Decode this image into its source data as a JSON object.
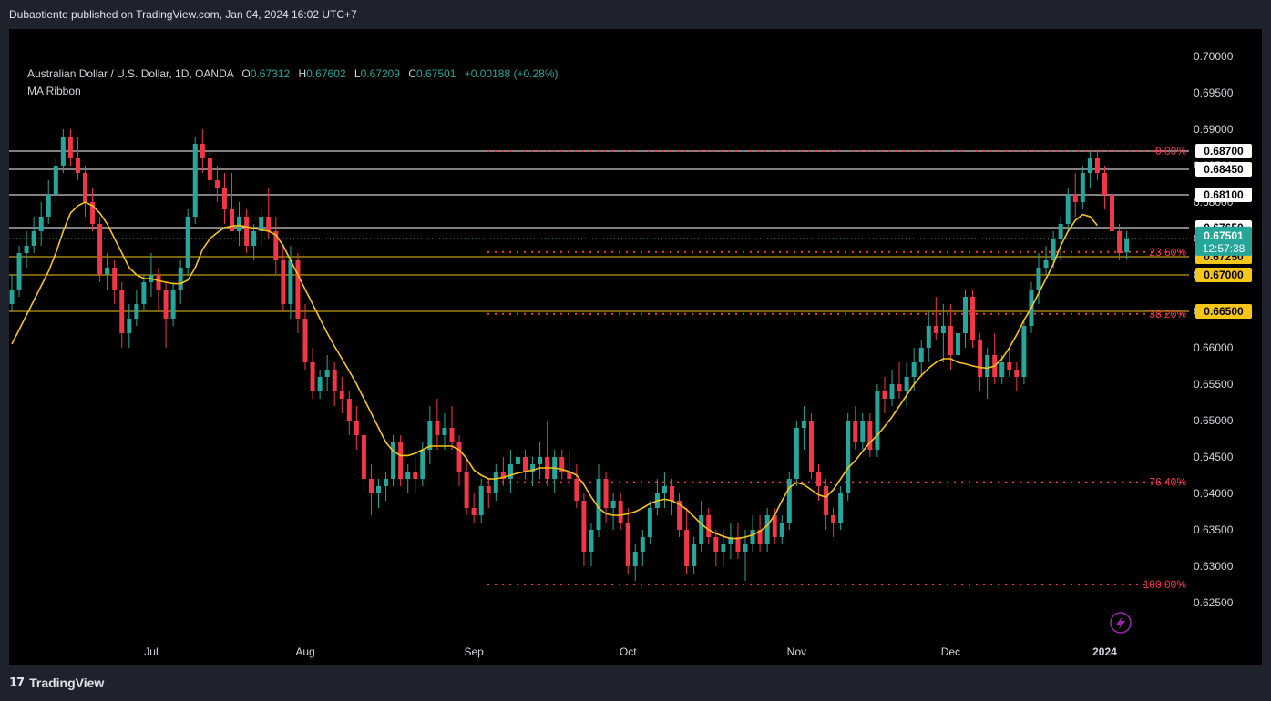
{
  "header": {
    "published": "Dubaotiente published on TradingView.com, Jan 04, 2024 16:02 UTC+7"
  },
  "legend": {
    "symbol": "Australian Dollar / U.S. Dollar, 1D, OANDA",
    "o_label": "O",
    "o_value": "0.67312",
    "h_label": "H",
    "h_value": "0.67602",
    "l_label": "L",
    "l_value": "0.67209",
    "c_label": "C",
    "c_value": "0.67501",
    "change": "+0.00188 (+0.28%)",
    "indicator": "MA Ribbon"
  },
  "footer": {
    "brand": "TradingView"
  },
  "colors": {
    "up": "#26a69a",
    "down": "#f23645",
    "ma": "#f5c518",
    "fib": "#f23645",
    "grid_text": "#d1d4dc",
    "background": "#000000"
  },
  "icons": {
    "lightning": "lightning-icon",
    "logo": "tradingview-logo-icon"
  },
  "chart_data": {
    "type": "candlestick",
    "symbol": "AUDUSD",
    "timeframe": "1D",
    "ylim": [
      0.6225,
      0.702
    ],
    "y_ticks": [
      "0.70000",
      "0.69500",
      "0.69000",
      "0.68500",
      "0.68000",
      "0.67500",
      "0.67000",
      "0.66500",
      "0.66000",
      "0.65500",
      "0.65000",
      "0.64500",
      "0.64000",
      "0.63500",
      "0.63000",
      "0.62500"
    ],
    "x_labels": [
      {
        "label": "Jul",
        "index": 19
      },
      {
        "label": "Aug",
        "index": 40
      },
      {
        "label": "Sep",
        "index": 63
      },
      {
        "label": "Oct",
        "index": 84
      },
      {
        "label": "Nov",
        "index": 107
      },
      {
        "label": "Dec",
        "index": 128
      },
      {
        "label": "2024",
        "index": 149
      }
    ],
    "candles": [
      [
        0.666,
        0.67,
        0.665,
        0.668
      ],
      [
        0.668,
        0.674,
        0.667,
        0.673
      ],
      [
        0.673,
        0.676,
        0.671,
        0.674
      ],
      [
        0.674,
        0.678,
        0.673,
        0.676
      ],
      [
        0.676,
        0.68,
        0.674,
        0.678
      ],
      [
        0.678,
        0.683,
        0.677,
        0.681
      ],
      [
        0.681,
        0.686,
        0.68,
        0.685
      ],
      [
        0.685,
        0.69,
        0.684,
        0.689
      ],
      [
        0.689,
        0.69,
        0.685,
        0.686
      ],
      [
        0.686,
        0.689,
        0.683,
        0.684
      ],
      [
        0.684,
        0.685,
        0.678,
        0.68
      ],
      [
        0.68,
        0.682,
        0.676,
        0.677
      ],
      [
        0.677,
        0.678,
        0.669,
        0.67
      ],
      [
        0.67,
        0.673,
        0.668,
        0.671
      ],
      [
        0.671,
        0.672,
        0.666,
        0.668
      ],
      [
        0.668,
        0.669,
        0.66,
        0.662
      ],
      [
        0.662,
        0.666,
        0.66,
        0.664
      ],
      [
        0.664,
        0.668,
        0.663,
        0.666
      ],
      [
        0.666,
        0.67,
        0.665,
        0.669
      ],
      [
        0.669,
        0.673,
        0.667,
        0.67
      ],
      [
        0.67,
        0.671,
        0.665,
        0.668
      ],
      [
        0.668,
        0.669,
        0.66,
        0.664
      ],
      [
        0.664,
        0.669,
        0.663,
        0.668
      ],
      [
        0.668,
        0.672,
        0.666,
        0.671
      ],
      [
        0.671,
        0.679,
        0.67,
        0.678
      ],
      [
        0.678,
        0.689,
        0.677,
        0.688
      ],
      [
        0.688,
        0.69,
        0.684,
        0.686
      ],
      [
        0.686,
        0.687,
        0.681,
        0.683
      ],
      [
        0.683,
        0.685,
        0.68,
        0.682
      ],
      [
        0.682,
        0.684,
        0.677,
        0.679
      ],
      [
        0.679,
        0.684,
        0.676,
        0.676
      ],
      [
        0.676,
        0.68,
        0.674,
        0.678
      ],
      [
        0.678,
        0.679,
        0.673,
        0.674
      ],
      [
        0.674,
        0.677,
        0.672,
        0.676
      ],
      [
        0.676,
        0.679,
        0.674,
        0.678
      ],
      [
        0.678,
        0.682,
        0.675,
        0.676
      ],
      [
        0.676,
        0.678,
        0.67,
        0.672
      ],
      [
        0.672,
        0.674,
        0.665,
        0.666
      ],
      [
        0.666,
        0.674,
        0.664,
        0.672
      ],
      [
        0.672,
        0.673,
        0.662,
        0.664
      ],
      [
        0.664,
        0.666,
        0.657,
        0.658
      ],
      [
        0.658,
        0.66,
        0.653,
        0.654
      ],
      [
        0.654,
        0.657,
        0.653,
        0.656
      ],
      [
        0.656,
        0.659,
        0.654,
        0.657
      ],
      [
        0.657,
        0.658,
        0.652,
        0.654
      ],
      [
        0.654,
        0.656,
        0.651,
        0.653
      ],
      [
        0.653,
        0.654,
        0.648,
        0.65
      ],
      [
        0.65,
        0.652,
        0.646,
        0.648
      ],
      [
        0.648,
        0.649,
        0.64,
        0.642
      ],
      [
        0.642,
        0.644,
        0.637,
        0.64
      ],
      [
        0.64,
        0.642,
        0.638,
        0.641
      ],
      [
        0.641,
        0.643,
        0.639,
        0.642
      ],
      [
        0.642,
        0.648,
        0.641,
        0.647
      ],
      [
        0.647,
        0.648,
        0.641,
        0.642
      ],
      [
        0.642,
        0.644,
        0.64,
        0.643
      ],
      [
        0.643,
        0.645,
        0.64,
        0.642
      ],
      [
        0.642,
        0.647,
        0.641,
        0.646
      ],
      [
        0.646,
        0.652,
        0.644,
        0.65
      ],
      [
        0.65,
        0.653,
        0.646,
        0.648
      ],
      [
        0.648,
        0.651,
        0.646,
        0.649
      ],
      [
        0.649,
        0.652,
        0.646,
        0.647
      ],
      [
        0.647,
        0.648,
        0.641,
        0.643
      ],
      [
        0.643,
        0.645,
        0.637,
        0.638
      ],
      [
        0.638,
        0.64,
        0.636,
        0.637
      ],
      [
        0.637,
        0.642,
        0.636,
        0.641
      ],
      [
        0.641,
        0.642,
        0.638,
        0.64
      ],
      [
        0.64,
        0.644,
        0.639,
        0.643
      ],
      [
        0.643,
        0.645,
        0.641,
        0.642
      ],
      [
        0.642,
        0.646,
        0.64,
        0.644
      ],
      [
        0.644,
        0.646,
        0.642,
        0.645
      ],
      [
        0.645,
        0.646,
        0.642,
        0.643
      ],
      [
        0.643,
        0.645,
        0.641,
        0.644
      ],
      [
        0.644,
        0.647,
        0.642,
        0.645
      ],
      [
        0.645,
        0.65,
        0.641,
        0.642
      ],
      [
        0.642,
        0.646,
        0.64,
        0.645
      ],
      [
        0.645,
        0.646,
        0.642,
        0.643
      ],
      [
        0.643,
        0.646,
        0.641,
        0.642
      ],
      [
        0.642,
        0.644,
        0.638,
        0.639
      ],
      [
        0.639,
        0.64,
        0.63,
        0.632
      ],
      [
        0.632,
        0.636,
        0.63,
        0.635
      ],
      [
        0.635,
        0.644,
        0.634,
        0.642
      ],
      [
        0.642,
        0.643,
        0.636,
        0.638
      ],
      [
        0.638,
        0.64,
        0.635,
        0.639
      ],
      [
        0.639,
        0.64,
        0.635,
        0.636
      ],
      [
        0.636,
        0.638,
        0.629,
        0.63
      ],
      [
        0.63,
        0.633,
        0.628,
        0.632
      ],
      [
        0.632,
        0.635,
        0.63,
        0.634
      ],
      [
        0.634,
        0.639,
        0.633,
        0.638
      ],
      [
        0.638,
        0.642,
        0.637,
        0.64
      ],
      [
        0.64,
        0.643,
        0.638,
        0.641
      ],
      [
        0.641,
        0.642,
        0.637,
        0.639
      ],
      [
        0.639,
        0.64,
        0.634,
        0.635
      ],
      [
        0.635,
        0.638,
        0.629,
        0.63
      ],
      [
        0.63,
        0.634,
        0.629,
        0.633
      ],
      [
        0.633,
        0.639,
        0.632,
        0.637
      ],
      [
        0.637,
        0.638,
        0.633,
        0.634
      ],
      [
        0.634,
        0.635,
        0.63,
        0.632
      ],
      [
        0.632,
        0.635,
        0.63,
        0.633
      ],
      [
        0.633,
        0.636,
        0.631,
        0.634
      ],
      [
        0.634,
        0.636,
        0.631,
        0.632
      ],
      [
        0.632,
        0.635,
        0.628,
        0.633
      ],
      [
        0.633,
        0.637,
        0.632,
        0.635
      ],
      [
        0.635,
        0.637,
        0.632,
        0.633
      ],
      [
        0.633,
        0.638,
        0.632,
        0.637
      ],
      [
        0.637,
        0.638,
        0.633,
        0.634
      ],
      [
        0.634,
        0.637,
        0.633,
        0.636
      ],
      [
        0.636,
        0.643,
        0.635,
        0.642
      ],
      [
        0.642,
        0.65,
        0.641,
        0.649
      ],
      [
        0.649,
        0.652,
        0.646,
        0.65
      ],
      [
        0.65,
        0.651,
        0.642,
        0.643
      ],
      [
        0.643,
        0.644,
        0.639,
        0.641
      ],
      [
        0.641,
        0.642,
        0.635,
        0.637
      ],
      [
        0.637,
        0.638,
        0.634,
        0.636
      ],
      [
        0.636,
        0.641,
        0.635,
        0.64
      ],
      [
        0.64,
        0.651,
        0.639,
        0.65
      ],
      [
        0.65,
        0.652,
        0.646,
        0.647
      ],
      [
        0.647,
        0.651,
        0.646,
        0.65
      ],
      [
        0.65,
        0.651,
        0.645,
        0.646
      ],
      [
        0.646,
        0.655,
        0.645,
        0.654
      ],
      [
        0.654,
        0.656,
        0.651,
        0.653
      ],
      [
        0.653,
        0.657,
        0.652,
        0.655
      ],
      [
        0.655,
        0.658,
        0.653,
        0.654
      ],
      [
        0.654,
        0.658,
        0.652,
        0.656
      ],
      [
        0.656,
        0.66,
        0.654,
        0.658
      ],
      [
        0.658,
        0.661,
        0.656,
        0.66
      ],
      [
        0.66,
        0.665,
        0.658,
        0.663
      ],
      [
        0.663,
        0.667,
        0.661,
        0.662
      ],
      [
        0.662,
        0.666,
        0.658,
        0.663
      ],
      [
        0.663,
        0.666,
        0.657,
        0.659
      ],
      [
        0.659,
        0.664,
        0.658,
        0.662
      ],
      [
        0.662,
        0.668,
        0.66,
        0.667
      ],
      [
        0.667,
        0.668,
        0.66,
        0.661
      ],
      [
        0.661,
        0.662,
        0.654,
        0.656
      ],
      [
        0.656,
        0.66,
        0.653,
        0.659
      ],
      [
        0.659,
        0.662,
        0.655,
        0.656
      ],
      [
        0.656,
        0.659,
        0.655,
        0.658
      ],
      [
        0.658,
        0.66,
        0.656,
        0.657
      ],
      [
        0.657,
        0.658,
        0.654,
        0.656
      ],
      [
        0.656,
        0.664,
        0.655,
        0.663
      ],
      [
        0.663,
        0.669,
        0.662,
        0.668
      ],
      [
        0.668,
        0.673,
        0.666,
        0.671
      ],
      [
        0.671,
        0.674,
        0.67,
        0.672
      ],
      [
        0.672,
        0.676,
        0.671,
        0.675
      ],
      [
        0.675,
        0.678,
        0.672,
        0.677
      ],
      [
        0.677,
        0.682,
        0.676,
        0.681
      ],
      [
        0.681,
        0.684,
        0.678,
        0.68
      ],
      [
        0.68,
        0.685,
        0.679,
        0.684
      ],
      [
        0.684,
        0.687,
        0.682,
        0.686
      ],
      [
        0.686,
        0.687,
        0.683,
        0.684
      ],
      [
        0.684,
        0.685,
        0.679,
        0.681
      ],
      [
        0.681,
        0.683,
        0.674,
        0.676
      ],
      [
        0.676,
        0.677,
        0.672,
        0.673
      ],
      [
        0.6731,
        0.676,
        0.6721,
        0.675
      ]
    ],
    "ma_20": [
      0.6605,
      0.6625,
      0.6645,
      0.6665,
      0.6685,
      0.6705,
      0.673,
      0.676,
      0.6785,
      0.6795,
      0.68,
      0.6795,
      0.6785,
      0.677,
      0.675,
      0.673,
      0.671,
      0.67,
      0.6695,
      0.6695,
      0.6692,
      0.669,
      0.6688,
      0.6688,
      0.6693,
      0.671,
      0.6735,
      0.675,
      0.6758,
      0.6765,
      0.6767,
      0.6768,
      0.6766,
      0.6764,
      0.6762,
      0.676,
      0.6755,
      0.674,
      0.672,
      0.67,
      0.668,
      0.666,
      0.664,
      0.662,
      0.6602,
      0.6585,
      0.6568,
      0.655,
      0.653,
      0.651,
      0.649,
      0.647,
      0.6458,
      0.6452,
      0.6452,
      0.6455,
      0.646,
      0.6465,
      0.6465,
      0.6465,
      0.6465,
      0.646,
      0.6448,
      0.6432,
      0.6425,
      0.642,
      0.642,
      0.6422,
      0.6425,
      0.6428,
      0.643,
      0.6432,
      0.6435,
      0.6435,
      0.6435,
      0.6433,
      0.643,
      0.6425,
      0.6412,
      0.6395,
      0.638,
      0.6372,
      0.637,
      0.637,
      0.6372,
      0.6375,
      0.638,
      0.6386,
      0.639,
      0.6392,
      0.639,
      0.6385,
      0.6378,
      0.6368,
      0.6358,
      0.635,
      0.6345,
      0.6341,
      0.6338,
      0.6338,
      0.634,
      0.6343,
      0.6348,
      0.6356,
      0.637,
      0.639,
      0.6408,
      0.6415,
      0.6412,
      0.6405,
      0.6398,
      0.6395,
      0.6405,
      0.642,
      0.6435,
      0.6445,
      0.6458,
      0.647,
      0.648,
      0.6492,
      0.6505,
      0.652,
      0.6535,
      0.655,
      0.6562,
      0.6572,
      0.658,
      0.6585,
      0.6585,
      0.658,
      0.6578,
      0.6575,
      0.6573,
      0.6572,
      0.6575,
      0.6585,
      0.66,
      0.6618,
      0.6638,
      0.6655,
      0.6675,
      0.6695,
      0.6715,
      0.674,
      0.676,
      0.6775,
      0.6783,
      0.678,
      0.6768
    ],
    "horizontal_levels": [
      {
        "value": 0.687,
        "label": "0.68700",
        "color": "#ffffff"
      },
      {
        "value": 0.6845,
        "label": "0.68450",
        "color": "#ffffff"
      },
      {
        "value": 0.681,
        "label": "0.68100",
        "color": "#ffffff"
      },
      {
        "value": 0.6765,
        "label": "0.67650",
        "color": "#ffffff"
      },
      {
        "value": 0.6725,
        "label": "0.67250",
        "color": "#f5c518"
      },
      {
        "value": 0.67,
        "label": "0.67000",
        "color": "#f5c518"
      },
      {
        "value": 0.665,
        "label": "0.66500",
        "color": "#f5c518"
      }
    ],
    "fib_levels": [
      {
        "value": 0.687,
        "label": "0.00%"
      },
      {
        "value": 0.67315,
        "label": "23.60%"
      },
      {
        "value": 0.66465,
        "label": "38.20%"
      },
      {
        "value": 0.64155,
        "label": "76.40%"
      },
      {
        "value": 0.6275,
        "label": "100.00%"
      }
    ],
    "price": {
      "value": 0.67501,
      "label": "0.67501",
      "countdown": "12:57:38"
    }
  }
}
